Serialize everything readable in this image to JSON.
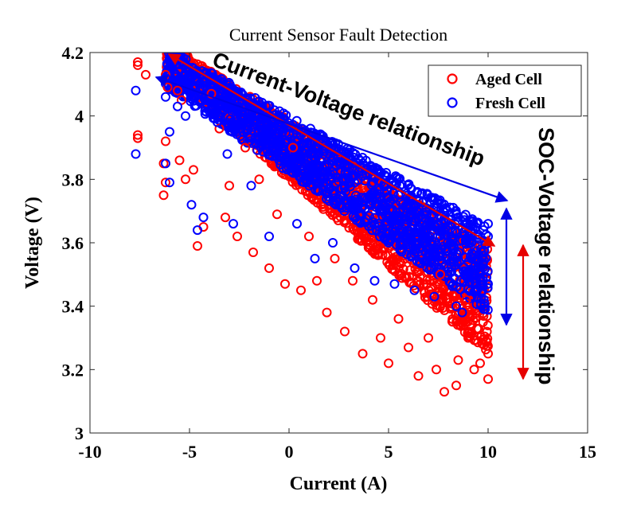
{
  "chart_data": {
    "type": "scatter",
    "title": "Current Sensor Fault Detection",
    "xlabel": "Current (A)",
    "ylabel": "Voltage (V)",
    "xlim": [
      -10,
      15
    ],
    "ylim": [
      3,
      4.2
    ],
    "xticks": [
      "-10",
      "-5",
      "0",
      "5",
      "10",
      "15"
    ],
    "yticks": [
      "3",
      "3.2",
      "3.4",
      "3.6",
      "3.8",
      "4",
      "4.2"
    ],
    "legend_position": "top-right",
    "grid": false,
    "series": [
      {
        "name": "Aged Cell",
        "color": "#ff0000",
        "marker": "circle-open",
        "points": [
          [
            -7.6,
            4.17
          ],
          [
            -7.6,
            4.16
          ],
          [
            -7.2,
            4.13
          ],
          [
            -7.6,
            3.94
          ],
          [
            -7.6,
            3.93
          ],
          [
            -6.2,
            4.13
          ],
          [
            -6.1,
            4.09
          ],
          [
            -6.2,
            3.92
          ],
          [
            -6.3,
            3.85
          ],
          [
            -6.2,
            3.79
          ],
          [
            -6.3,
            3.75
          ],
          [
            -5.6,
            4.08
          ],
          [
            -5.4,
            4.05
          ],
          [
            -5.5,
            3.86
          ],
          [
            -5.2,
            3.8
          ],
          [
            -4.8,
            3.83
          ],
          [
            -4.6,
            3.59
          ],
          [
            -4.3,
            3.65
          ],
          [
            -3.9,
            4.07
          ],
          [
            -3.5,
            3.96
          ],
          [
            -3.2,
            3.68
          ],
          [
            -3.0,
            3.78
          ],
          [
            -2.6,
            3.62
          ],
          [
            -2.2,
            3.9
          ],
          [
            -1.8,
            3.57
          ],
          [
            -1.5,
            3.8
          ],
          [
            -1.0,
            3.52
          ],
          [
            -0.6,
            3.69
          ],
          [
            -0.2,
            3.47
          ],
          [
            0.2,
            3.9
          ],
          [
            0.6,
            3.45
          ],
          [
            1.0,
            3.62
          ],
          [
            1.4,
            3.48
          ],
          [
            1.9,
            3.38
          ],
          [
            2.3,
            3.55
          ],
          [
            2.8,
            3.32
          ],
          [
            3.2,
            3.48
          ],
          [
            3.7,
            3.25
          ],
          [
            4.2,
            3.42
          ],
          [
            4.6,
            3.3
          ],
          [
            5.0,
            3.22
          ],
          [
            5.5,
            3.36
          ],
          [
            6.0,
            3.27
          ],
          [
            6.5,
            3.18
          ],
          [
            7.0,
            3.3
          ],
          [
            7.4,
            3.2
          ],
          [
            7.8,
            3.13
          ],
          [
            8.4,
            3.15
          ],
          [
            8.5,
            3.23
          ],
          [
            9.0,
            3.3
          ],
          [
            9.3,
            3.2
          ],
          [
            9.6,
            3.22
          ],
          [
            10.0,
            3.17
          ],
          [
            10.0,
            3.25
          ],
          [
            8.9,
            3.42
          ],
          [
            7.6,
            3.5
          ]
        ]
      },
      {
        "name": "Fresh Cell",
        "color": "#0000ff",
        "marker": "circle-open",
        "points": [
          [
            -7.7,
            4.08
          ],
          [
            -7.7,
            3.88
          ],
          [
            -6.2,
            4.12
          ],
          [
            -6.2,
            4.06
          ],
          [
            -6.0,
            3.95
          ],
          [
            -6.2,
            3.85
          ],
          [
            -6.0,
            3.79
          ],
          [
            -5.6,
            4.03
          ],
          [
            -5.2,
            4.0
          ],
          [
            -4.9,
            3.72
          ],
          [
            -4.6,
            3.64
          ],
          [
            -4.3,
            3.68
          ],
          [
            -3.6,
            3.98
          ],
          [
            -3.1,
            3.88
          ],
          [
            -2.8,
            3.66
          ],
          [
            -2.3,
            3.95
          ],
          [
            -1.9,
            3.78
          ],
          [
            -1.4,
            3.92
          ],
          [
            -1.0,
            3.62
          ],
          [
            -0.5,
            3.86
          ],
          [
            0.0,
            3.94
          ],
          [
            0.4,
            3.66
          ],
          [
            0.8,
            3.82
          ],
          [
            1.3,
            3.55
          ],
          [
            1.8,
            3.84
          ],
          [
            2.2,
            3.6
          ],
          [
            2.8,
            3.78
          ],
          [
            3.3,
            3.52
          ],
          [
            3.8,
            3.74
          ],
          [
            4.3,
            3.48
          ],
          [
            4.8,
            3.7
          ],
          [
            5.3,
            3.47
          ],
          [
            5.8,
            3.66
          ],
          [
            6.3,
            3.45
          ],
          [
            6.8,
            3.63
          ],
          [
            7.3,
            3.43
          ],
          [
            7.9,
            3.55
          ],
          [
            8.4,
            3.4
          ],
          [
            8.7,
            3.38
          ],
          [
            9.0,
            3.62
          ],
          [
            9.3,
            3.55
          ],
          [
            9.6,
            3.5
          ],
          [
            9.8,
            3.4
          ],
          [
            10.0,
            3.66
          ],
          [
            10.0,
            3.47
          ],
          [
            9.4,
            3.45
          ]
        ]
      }
    ]
  },
  "annotations": {
    "current_voltage": "Current-Voltage relationship",
    "soc_voltage": "SOC-Voltage relationship"
  }
}
